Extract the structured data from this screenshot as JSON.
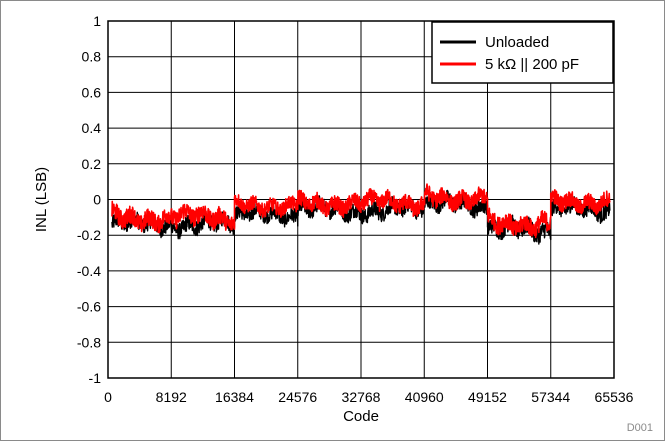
{
  "chart_data": {
    "type": "line",
    "xlabel": "Code",
    "ylabel": "INL (LSB)",
    "xlim": [
      0,
      65536
    ],
    "ylim": [
      -1,
      1
    ],
    "xticks": [
      0,
      8192,
      16384,
      24576,
      32768,
      40960,
      49152,
      57344,
      65536
    ],
    "yticks": [
      -1,
      -0.8,
      -0.6,
      -0.4,
      -0.2,
      0,
      0.2,
      0.4,
      0.6,
      0.8,
      1
    ],
    "grid": true,
    "legend_position": "top-right",
    "series": [
      {
        "name": "Unloaded",
        "color": "#000000",
        "segments": [
          {
            "x": [
              512,
              16384
            ],
            "center": -0.14,
            "amplitude": 0.08
          },
          {
            "x": [
              16384,
              24576
            ],
            "center": -0.09,
            "amplitude": 0.07
          },
          {
            "x": [
              24576,
              41000
            ],
            "center": -0.06,
            "amplitude": 0.08
          },
          {
            "x": [
              41000,
              49152
            ],
            "center": -0.03,
            "amplitude": 0.08
          },
          {
            "x": [
              49152,
              57344
            ],
            "center": -0.17,
            "amplitude": 0.09
          },
          {
            "x": [
              57344,
              65000
            ],
            "center": -0.06,
            "amplitude": 0.08
          }
        ]
      },
      {
        "name": "5 kΩ || 200 pF",
        "color": "#ff0000",
        "segments": [
          {
            "x": [
              512,
              16384
            ],
            "center": -0.1,
            "amplitude": 0.09
          },
          {
            "x": [
              16384,
              24576
            ],
            "center": -0.03,
            "amplitude": 0.07
          },
          {
            "x": [
              24576,
              41000
            ],
            "center": -0.02,
            "amplitude": 0.08
          },
          {
            "x": [
              41000,
              49152
            ],
            "center": 0.01,
            "amplitude": 0.08
          },
          {
            "x": [
              49152,
              57344
            ],
            "center": -0.13,
            "amplitude": 0.09
          },
          {
            "x": [
              57344,
              65000
            ],
            "center": -0.01,
            "amplitude": 0.08
          }
        ]
      }
    ]
  },
  "watermark": "D001"
}
